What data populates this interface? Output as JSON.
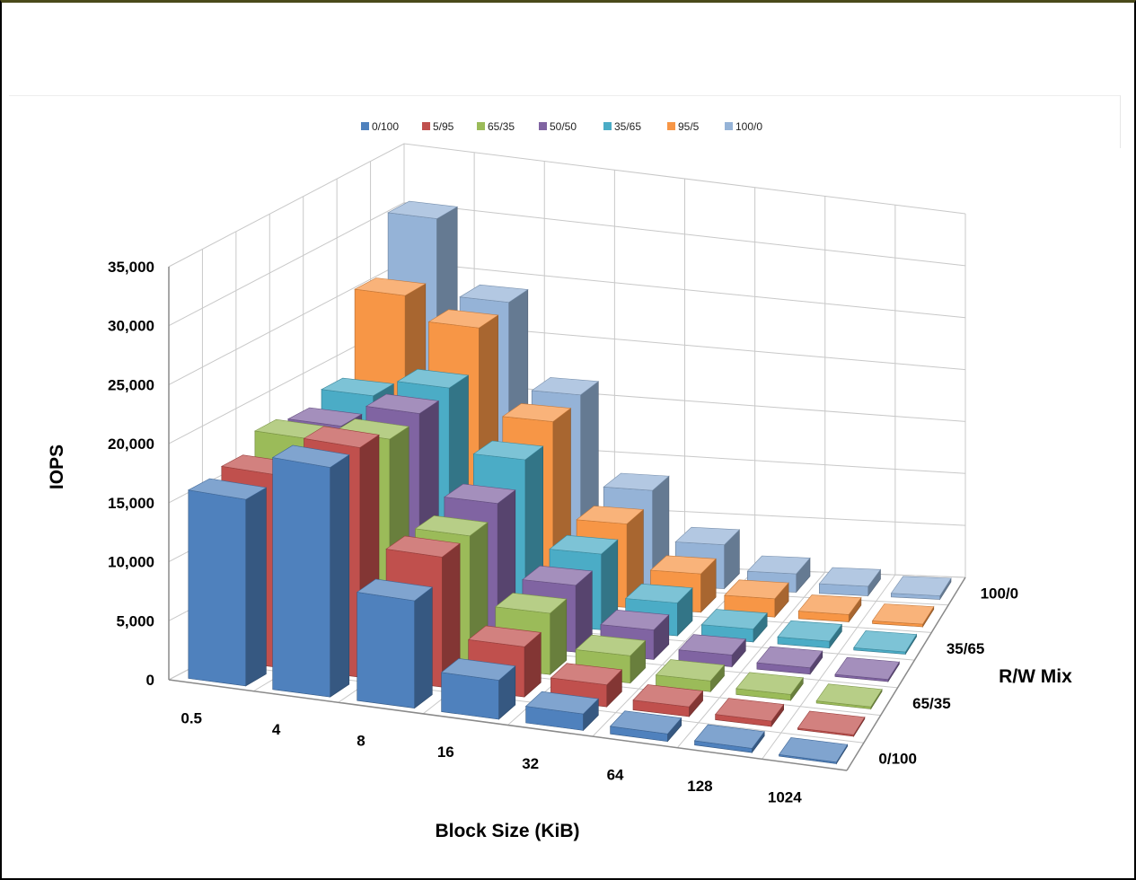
{
  "chart_data": {
    "type": "bar3d",
    "zlabel": "IOPS",
    "xlabel": "Block Size (KiB)",
    "ylabel": "R/W Mix",
    "zlim": [
      0,
      35000
    ],
    "z_ticks": [
      "0",
      "5,000",
      "10,000",
      "15,000",
      "20,000",
      "25,000",
      "30,000",
      "35,000"
    ],
    "z_tick_values": [
      0,
      5000,
      10000,
      15000,
      20000,
      25000,
      30000,
      35000
    ],
    "categories": [
      "0.5",
      "4",
      "8",
      "16",
      "32",
      "64",
      "128",
      "1024"
    ],
    "depth_tick_labels": [
      "0/100",
      "65/35",
      "35/65",
      "100/0"
    ],
    "legend_position": "top",
    "grid": true,
    "series": [
      {
        "name": "0/100",
        "color": "#4f81bd",
        "values": [
          16000,
          20000,
          9500,
          3500,
          1500,
          700,
          400,
          150
        ]
      },
      {
        "name": "5/95",
        "color": "#c0504d",
        "values": [
          16500,
          20000,
          11500,
          4500,
          2000,
          900,
          500,
          150
        ]
      },
      {
        "name": "65/35",
        "color": "#9bbb59",
        "values": [
          18000,
          19000,
          11500,
          5500,
          2500,
          1000,
          550,
          200
        ]
      },
      {
        "name": "50/50",
        "color": "#8064a2",
        "values": [
          17500,
          19500,
          12500,
          6000,
          2700,
          1100,
          600,
          200
        ]
      },
      {
        "name": "35/65",
        "color": "#4bacc6",
        "values": [
          18500,
          20000,
          14500,
          6800,
          3000,
          1200,
          650,
          220
        ]
      },
      {
        "name": "95/5",
        "color": "#f79646",
        "values": [
          25500,
          23500,
          16000,
          7500,
          3500,
          1700,
          700,
          250
        ]
      },
      {
        "name": "100/0",
        "color": "#95b3d7",
        "values": [
          30500,
          24000,
          16500,
          8500,
          4000,
          1700,
          900,
          350
        ]
      }
    ]
  }
}
